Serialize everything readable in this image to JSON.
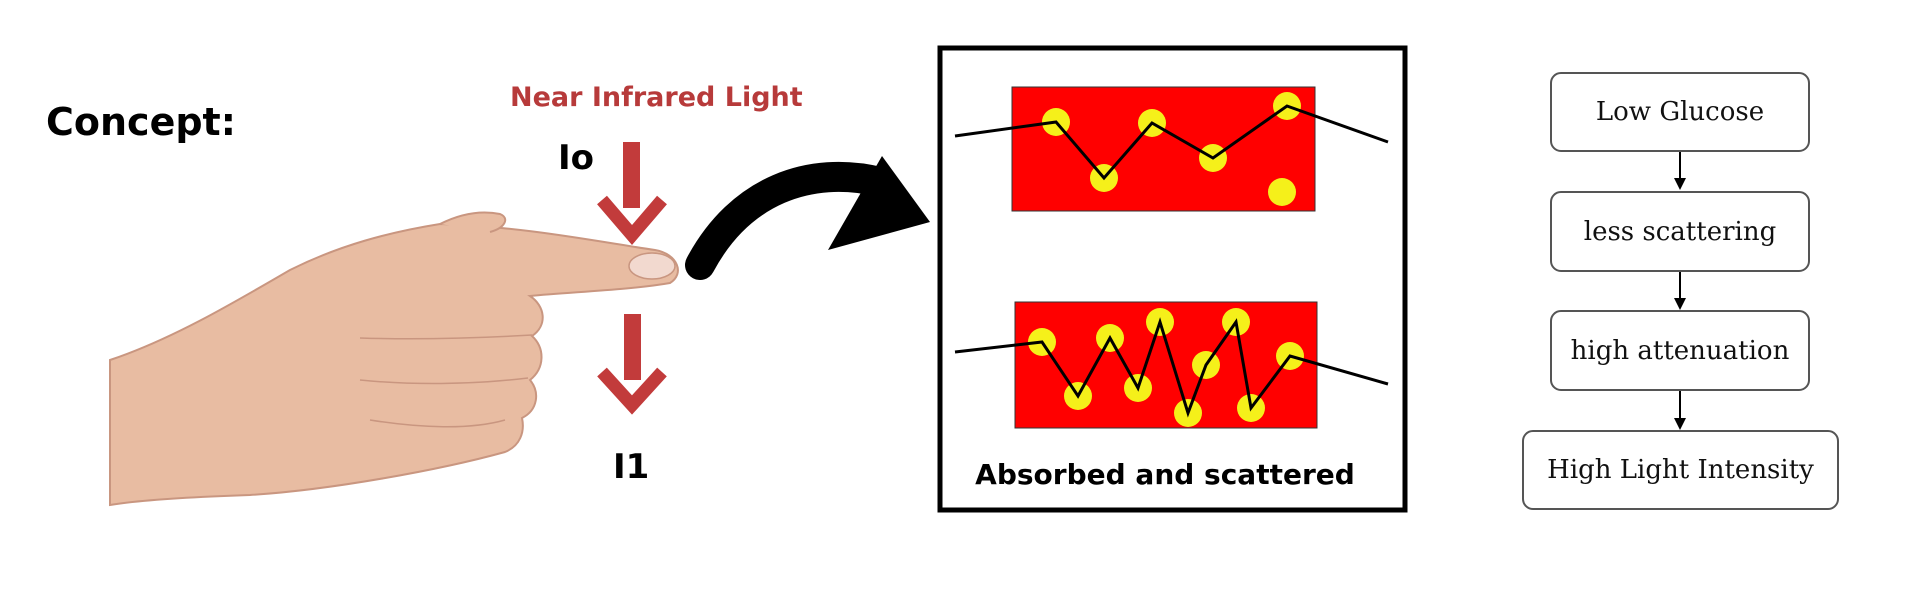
{
  "labels": {
    "concept": "Concept:",
    "light_source": "Near Infrared Light",
    "incident": "Io",
    "transmitted": "I1",
    "box_caption": "Absorbed and scattered"
  },
  "flow": {
    "steps": [
      "Low Glucose",
      "less scattering",
      "high attenuation",
      "High Light Intensity"
    ]
  },
  "colors": {
    "light_arrow": "#c23b3b",
    "medium": "#ff0000",
    "particle": "#f5f01a",
    "light_label": "#b73a3a"
  },
  "icons": {
    "hand": "hand-pointing-icon",
    "down_arrow": "down-arrow-icon",
    "curved_arrow": "curved-arrow-icon"
  }
}
